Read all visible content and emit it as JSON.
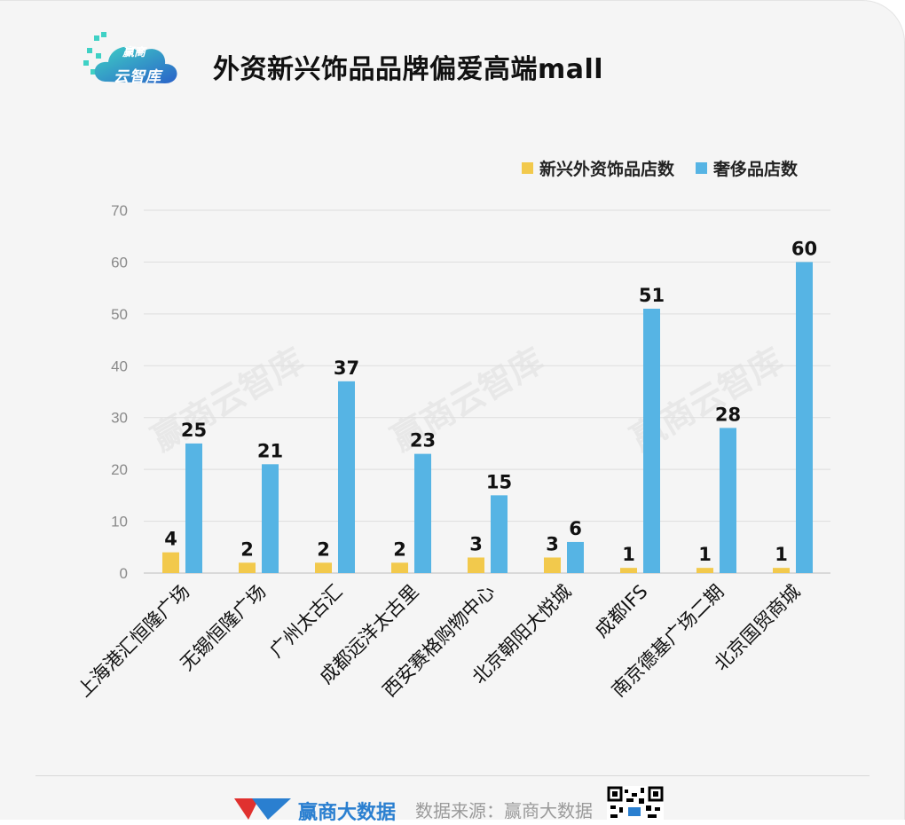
{
  "header": {
    "logo_line1": "赢商",
    "logo_line2": "云智库",
    "title": "外资新兴饰品品牌偏爱高端mall"
  },
  "watermark_text": "赢商云智库",
  "footer": {
    "brand": "赢商大数据",
    "source": "数据来源：赢商大数据"
  },
  "colors": {
    "series1": "#f2c94c",
    "series2": "#56b4e4",
    "brand_blue": "#2a7fd0",
    "brand_red": "#e0312f"
  },
  "chart_data": {
    "type": "bar",
    "title": "外资新兴饰品品牌偏爱高端mall",
    "categories": [
      "上海港汇恒隆广场",
      "无锡恒隆广场",
      "广州太古汇",
      "成都远洋太古里",
      "西安赛格购物中心",
      "北京朝阳大悦城",
      "成都IFS",
      "南京德基广场二期",
      "北京国贸商城"
    ],
    "series": [
      {
        "name": "新兴外资饰品店数",
        "values": [
          4,
          2,
          2,
          2,
          3,
          3,
          1,
          1,
          1
        ],
        "color": "#f2c94c"
      },
      {
        "name": "奢侈品店数",
        "values": [
          25,
          21,
          37,
          23,
          15,
          6,
          51,
          28,
          60
        ],
        "color": "#56b4e4"
      }
    ],
    "ylim": [
      0,
      70
    ],
    "yticks": [
      0,
      10,
      20,
      30,
      40,
      50,
      60,
      70
    ],
    "grid": true,
    "legend_position": "top-right",
    "data_labels": true
  }
}
